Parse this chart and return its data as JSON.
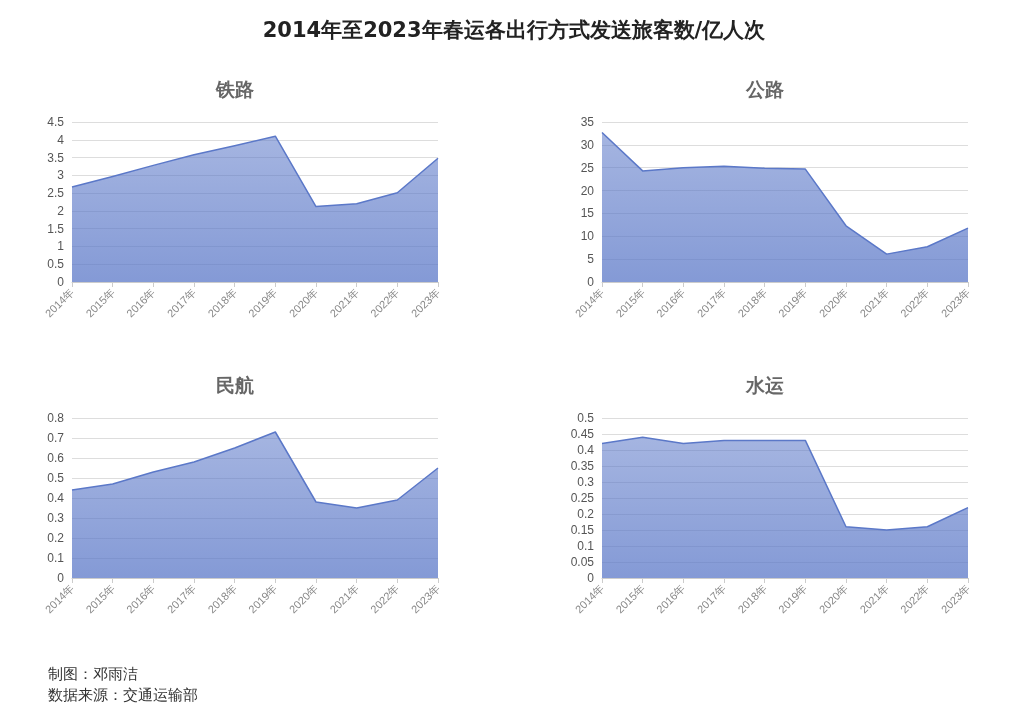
{
  "chart_data": [
    {
      "type": "other",
      "title": "2014年至2023年春运各出行方式发送旅客数/亿人次",
      "annotations": [
        "制图：邓雨洁",
        "数据来源：交通运输部"
      ]
    },
    {
      "type": "area",
      "title": "铁路",
      "categories": [
        "2014年",
        "2015年",
        "2016年",
        "2017年",
        "2018年",
        "2019年",
        "2020年",
        "2021年",
        "2022年",
        "2023年"
      ],
      "series": [
        {
          "color": "#5b78c8",
          "values": [
            2.67,
            2.97,
            3.28,
            3.58,
            3.83,
            4.1,
            2.12,
            2.2,
            2.51,
            3.48
          ]
        }
      ],
      "ylim": [
        0,
        4.5
      ],
      "yticks": [
        0,
        0.5,
        1,
        1.5,
        2,
        2.5,
        3,
        3.5,
        4,
        4.5
      ],
      "grid": "y"
    },
    {
      "type": "area",
      "title": "公路",
      "categories": [
        "2014年",
        "2015年",
        "2016年",
        "2017年",
        "2018年",
        "2019年",
        "2020年",
        "2021年",
        "2022年",
        "2023年"
      ],
      "series": [
        {
          "color": "#5b78c8",
          "values": [
            32.7,
            24.3,
            25.0,
            25.3,
            24.9,
            24.7,
            12.3,
            6.1,
            7.7,
            11.8
          ]
        }
      ],
      "ylim": [
        0,
        35
      ],
      "yticks": [
        0,
        5,
        10,
        15,
        20,
        25,
        30,
        35
      ],
      "grid": "y"
    },
    {
      "type": "area",
      "title": "民航",
      "categories": [
        "2014年",
        "2015年",
        "2016年",
        "2017年",
        "2018年",
        "2019年",
        "2020年",
        "2021年",
        "2022年",
        "2023年"
      ],
      "series": [
        {
          "color": "#5b78c8",
          "values": [
            0.44,
            0.47,
            0.53,
            0.58,
            0.65,
            0.73,
            0.38,
            0.35,
            0.39,
            0.55
          ]
        }
      ],
      "ylim": [
        0,
        0.8
      ],
      "yticks": [
        0,
        0.1,
        0.2,
        0.3,
        0.4,
        0.5,
        0.6,
        0.7,
        0.8
      ],
      "grid": "y"
    },
    {
      "type": "area",
      "title": "水运",
      "categories": [
        "2014年",
        "2015年",
        "2016年",
        "2017年",
        "2018年",
        "2019年",
        "2020年",
        "2021年",
        "2022年",
        "2023年"
      ],
      "series": [
        {
          "color": "#5b78c8",
          "values": [
            0.42,
            0.44,
            0.42,
            0.43,
            0.43,
            0.43,
            0.16,
            0.15,
            0.16,
            0.22
          ]
        }
      ],
      "ylim": [
        0,
        0.5
      ],
      "yticks": [
        0,
        0.05,
        0.1,
        0.15,
        0.2,
        0.25,
        0.3,
        0.35,
        0.4,
        0.45,
        0.5
      ],
      "grid": "y"
    }
  ]
}
